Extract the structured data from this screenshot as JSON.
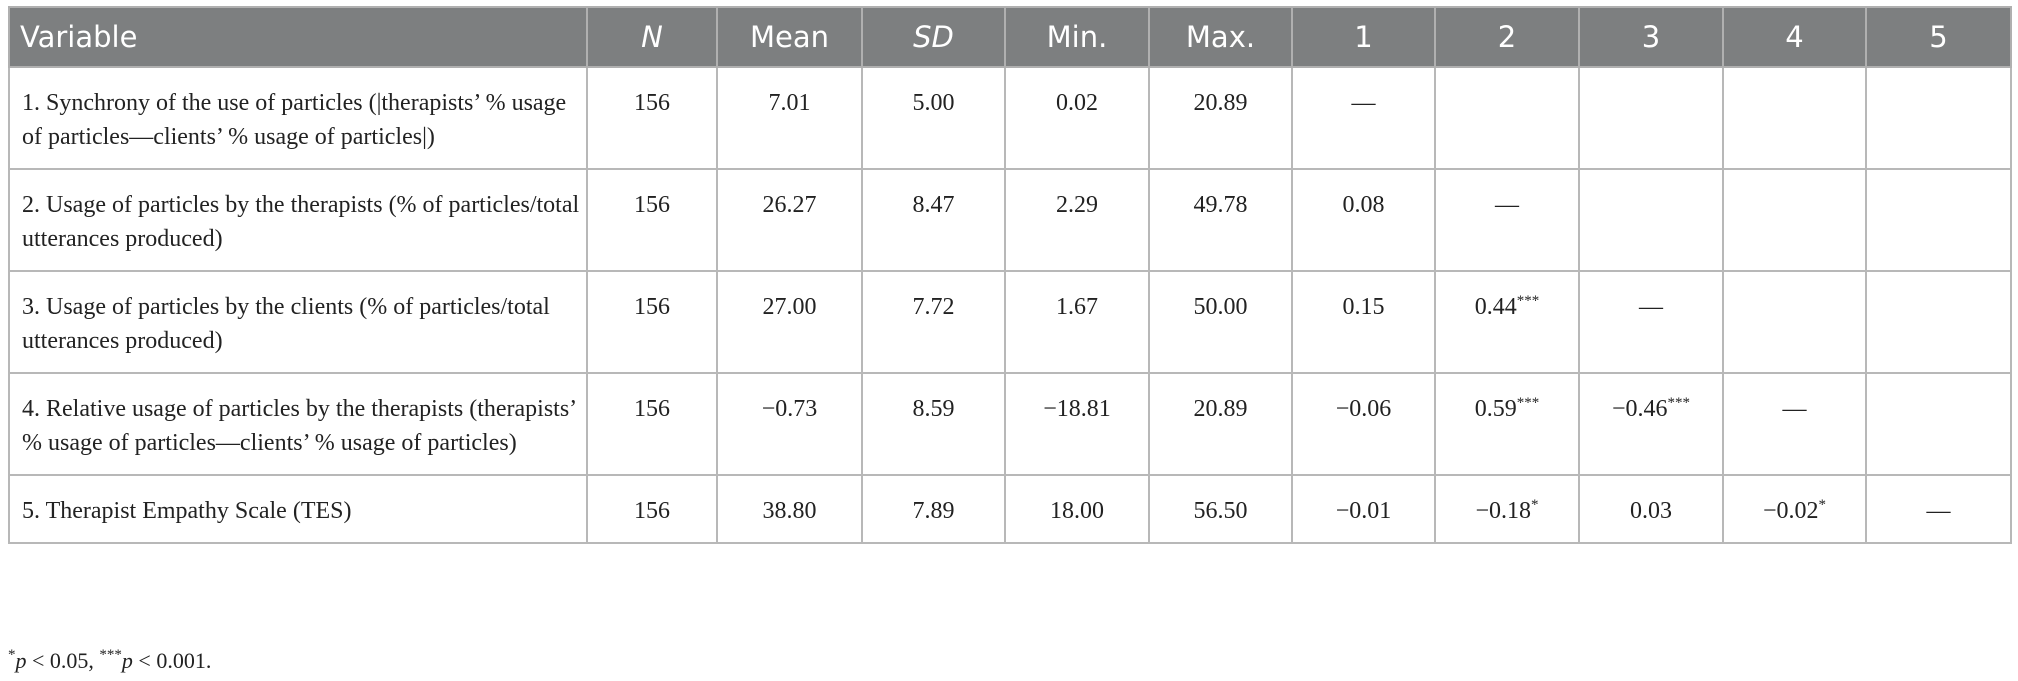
{
  "table": {
    "header": [
      "Variable",
      "N",
      "Mean",
      "SD",
      "Min.",
      "Max.",
      "1",
      "2",
      "3",
      "4",
      "5"
    ],
    "italic_header": [
      1,
      3
    ],
    "rows": [
      [
        "1. Synchrony of the use of particles (|therapists’ % usage of particles—clients’ % usage of particles|)",
        "156",
        "7.01",
        "5.00",
        "0.02",
        "20.89",
        "—",
        null,
        null,
        null,
        null
      ],
      [
        "2. Usage of particles by the therapists (% of particles/total utterances produced)",
        "156",
        "26.27",
        "8.47",
        "2.29",
        "49.78",
        "0.08",
        "—",
        null,
        null,
        null
      ],
      [
        "3. Usage of particles by the clients (% of particles/total utterances produced)",
        "156",
        "27.00",
        "7.72",
        "1.67",
        "50.00",
        "0.15",
        {
          "text": "0.44",
          "sup": "***"
        },
        "—",
        null,
        null
      ],
      [
        "4. Relative usage of particles by the therapists (therapists’ % usage of particles—clients’ % usage of particles)",
        "156",
        "−0.73",
        "8.59",
        "−18.81",
        "20.89",
        "−0.06",
        {
          "text": "0.59",
          "sup": "***"
        },
        {
          "text": "−0.46",
          "sup": "***"
        },
        "—",
        null
      ],
      [
        "5. Therapist Empathy Scale (TES)",
        "156",
        "38.80",
        "7.89",
        "18.00",
        "56.50",
        "−0.01",
        {
          "text": "−0.18",
          "sup": "*"
        },
        "0.03",
        {
          "text": "−0.02",
          "sup": "*"
        },
        "—"
      ]
    ]
  },
  "footnote": [
    {
      "text": "*",
      "style": "sup"
    },
    {
      "text": "p",
      "style": "italic"
    },
    {
      "text": " < 0.05, ",
      "style": "plain"
    },
    {
      "text": "***",
      "style": "sup"
    },
    {
      "text": "p",
      "style": "italic"
    },
    {
      "text": " < 0.001.",
      "style": "plain"
    }
  ]
}
